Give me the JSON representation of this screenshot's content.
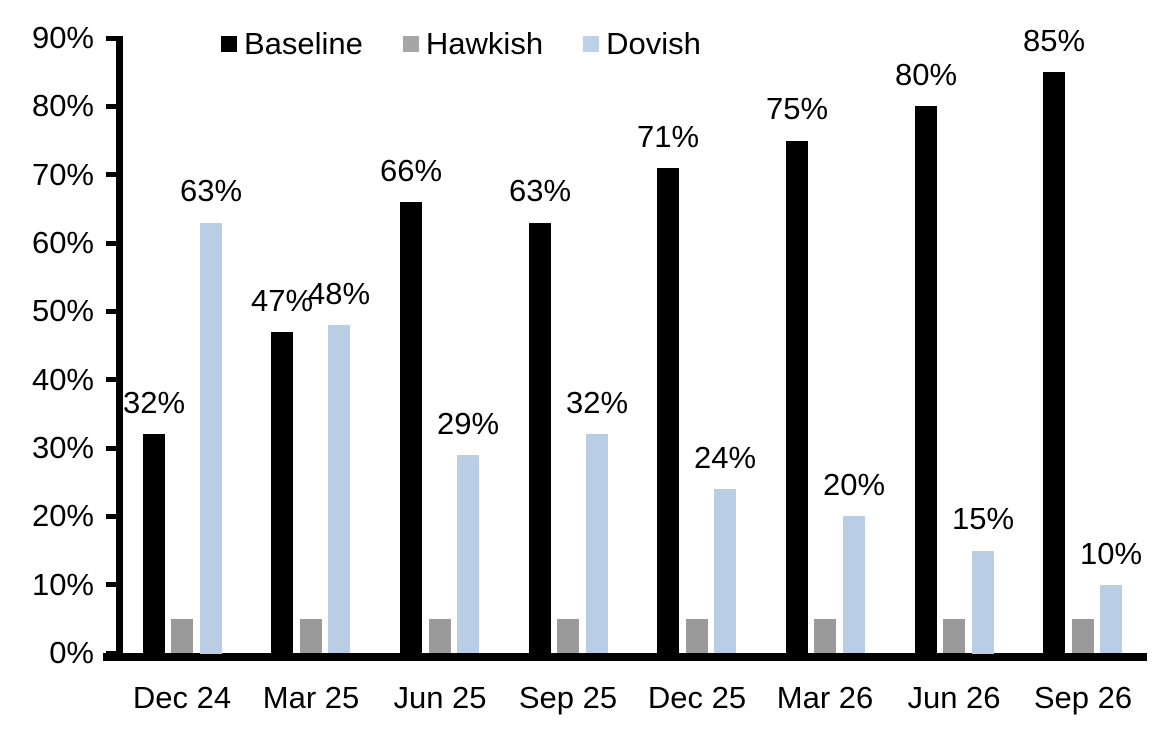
{
  "chart_data": {
    "type": "bar",
    "title": "",
    "categories": [
      "Dec 24",
      "Mar 25",
      "Jun 25",
      "Sep 25",
      "Dec 25",
      "Mar 26",
      "Jun 26",
      "Sep 26"
    ],
    "series": [
      {
        "name": "Baseline",
        "color": "#000000",
        "legend_swatch_color": "#000000",
        "values": [
          32,
          47,
          66,
          63,
          71,
          75,
          80,
          85
        ],
        "data_labels": [
          "32%",
          "47%",
          "66%",
          "63%",
          "71%",
          "75%",
          "80%",
          "85%"
        ],
        "show_labels": true
      },
      {
        "name": "Hawkish",
        "color": "#9A9A9A",
        "legend_swatch_color": "#A6A6A6",
        "values": [
          5,
          5,
          5,
          5,
          5,
          5,
          5,
          5
        ],
        "data_labels": [],
        "show_labels": false
      },
      {
        "name": "Dovish",
        "color": "#B9CDE4",
        "legend_swatch_color": "#BDD1EB",
        "values": [
          63,
          48,
          29,
          32,
          24,
          20,
          15,
          10
        ],
        "data_labels": [
          "63%",
          "48%",
          "29%",
          "32%",
          "24%",
          "20%",
          "15%",
          "10%"
        ],
        "show_labels": true
      }
    ],
    "xlabel": "",
    "ylabel": "",
    "ylim": [
      0,
      90
    ],
    "ytick_step": 10,
    "ytick_labels": [
      "0%",
      "10%",
      "20%",
      "30%",
      "40%",
      "50%",
      "60%",
      "70%",
      "80%",
      "90%"
    ],
    "grid": false,
    "legend_position": "top",
    "axis_color": "#000000",
    "background_color": "#FFFFFF"
  }
}
